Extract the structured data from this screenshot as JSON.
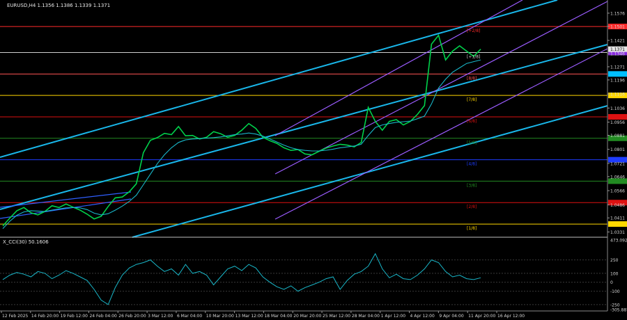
{
  "header": {
    "symbol_line": "EURUSD,H4  1.1356 1.1386 1.1339 1.1371",
    "indicator_line": "X_CCI(30) 50.1606"
  },
  "chart_data": {
    "type": "line",
    "title": "EURUSD,H4  1.1356 1.1386 1.1339 1.1371",
    "symbol": "EURUSD",
    "timeframe": "H4",
    "ohlc_last": {
      "open": 1.1356,
      "high": 1.1386,
      "low": 1.1339,
      "close": 1.1371
    },
    "y_range": [
      1.0305,
      1.1635
    ],
    "price_axis_ticks": [
      "1.1576",
      "1.1501",
      "1.1421",
      "1.1346",
      "1.1271",
      "1.1196",
      "1.1116",
      "1.1036",
      "1.0956",
      "1.0881",
      "1.0801",
      "1.0721",
      "1.0646",
      "1.0566",
      "1.0486",
      "1.0411",
      "1.0331"
    ],
    "x_labels": [
      "12 Feb 2025",
      "14 Feb 20:00",
      "19 Feb 12:00",
      "24 Feb 04:00",
      "26 Feb 20:00",
      "3 Mar 12:00",
      "6 Mar 04:00",
      "10 Mar 20:00",
      "13 Mar 12:00",
      "18 Mar 04:00",
      "20 Mar 20:00",
      "25 Mar 12:00",
      "28 Mar 04:00",
      "1 Apr 12:00",
      "4 Apr 12:00",
      "9 Apr 04:00",
      "11 Apr 20:00",
      "16 Apr 12:00"
    ],
    "murray_levels": [
      {
        "label": "[+2/8]",
        "value": 1.15,
        "color": "#ff2a2a",
        "badge_color": "#ff2a2a"
      },
      {
        "label": "[+1/8]",
        "value": 1.1352,
        "color": "#cfcfcf",
        "badge_color": "#8a2be2"
      },
      {
        "label": "[8/8]",
        "value": 1.123,
        "color": "#ff5555",
        "badge_color": "#00bfff"
      },
      {
        "label": "[7/8]",
        "value": 1.1108,
        "color": "#ffd700",
        "badge_color": "#ffd700"
      },
      {
        "label": "[6/8]",
        "value": 1.0986,
        "color": "#dd1111",
        "badge_color": "#dd1111"
      },
      {
        "label": "[5/8]",
        "value": 1.0864,
        "color": "#228b22",
        "badge_color": "#228b22"
      },
      {
        "label": "[4/8]",
        "value": 1.0742,
        "color": "#1e3cff",
        "badge_color": "#1e3cff"
      },
      {
        "label": "[3/8]",
        "value": 1.062,
        "color": "#228b22",
        "badge_color": "#228b22"
      },
      {
        "label": "[2/8]",
        "value": 1.0498,
        "color": "#dd1111",
        "badge_color": "#dd1111"
      },
      {
        "label": "[1/8]",
        "value": 1.0376,
        "color": "#ffd700",
        "badge_color": "#ffd700"
      }
    ],
    "price_series": [
      1.0365,
      1.041,
      1.0452,
      1.047,
      1.044,
      1.0428,
      1.0448,
      1.048,
      1.047,
      1.049,
      1.0472,
      1.0455,
      1.0432,
      1.0405,
      1.042,
      1.0476,
      1.0525,
      1.053,
      1.056,
      1.0605,
      1.0782,
      1.0853,
      1.0868,
      1.0892,
      1.0885,
      1.0931,
      1.0878,
      1.088,
      1.086,
      1.087,
      1.0902,
      1.089,
      1.087,
      1.088,
      1.091,
      1.0948,
      1.092,
      1.087,
      1.085,
      1.0835,
      1.081,
      1.0795,
      1.08,
      1.0775,
      1.077,
      1.079,
      1.0808,
      1.082,
      1.083,
      1.0825,
      1.0815,
      1.084,
      1.104,
      1.096,
      1.091,
      1.096,
      1.097,
      1.094,
      1.096,
      1.1,
      1.105,
      1.14,
      1.145,
      1.131,
      1.136,
      1.139,
      1.136,
      1.133,
      1.1371
    ],
    "ma_series": [
      1.035,
      1.0392,
      1.0426,
      1.0445,
      1.0452,
      1.045,
      1.0447,
      1.0455,
      1.0462,
      1.0468,
      1.047,
      1.0468,
      1.0458,
      1.0438,
      1.0428,
      1.0435,
      1.0455,
      1.0478,
      1.0505,
      1.054,
      1.06,
      1.066,
      1.072,
      1.077,
      1.081,
      1.084,
      1.0855,
      1.086,
      1.0862,
      1.0865,
      1.0868,
      1.0872,
      1.0878,
      1.0885,
      1.0888,
      1.0894,
      1.0888,
      1.0876,
      1.086,
      1.0843,
      1.0825,
      1.081,
      1.08,
      1.0795,
      1.0792,
      1.0792,
      1.0796,
      1.0802,
      1.081,
      1.0815,
      1.082,
      1.083,
      1.088,
      1.0925,
      1.094,
      1.0948,
      1.0955,
      1.0958,
      1.0962,
      1.0975,
      1.099,
      1.106,
      1.115,
      1.12,
      1.124,
      1.1265,
      1.129,
      1.13,
      1.131
    ],
    "cci_levels": {
      "ticks": [
        "473.0924",
        "250",
        "100",
        "0",
        "-100",
        "-250",
        "-305.8879"
      ],
      "range": [
        -305.8879,
        473.0924
      ]
    },
    "cci_series": [
      30,
      80,
      110,
      90,
      60,
      120,
      100,
      40,
      80,
      130,
      100,
      60,
      20,
      -80,
      -200,
      -250,
      -60,
      80,
      160,
      200,
      220,
      250,
      180,
      120,
      150,
      80,
      200,
      100,
      120,
      80,
      -30,
      60,
      150,
      180,
      130,
      200,
      160,
      60,
      0,
      -50,
      -80,
      -40,
      -100,
      -60,
      -30,
      0,
      40,
      60,
      -80,
      20,
      90,
      120,
      180,
      320,
      150,
      50,
      90,
      40,
      30,
      80,
      150,
      250,
      220,
      120,
      60,
      80,
      40,
      30,
      50
    ],
    "series": [
      {
        "name": "EURUSD",
        "color": "#00d24b"
      },
      {
        "name": "MA",
        "color": "#19b7c9"
      },
      {
        "name": "X_CCI(30)",
        "color": "#19b7c9"
      }
    ]
  }
}
